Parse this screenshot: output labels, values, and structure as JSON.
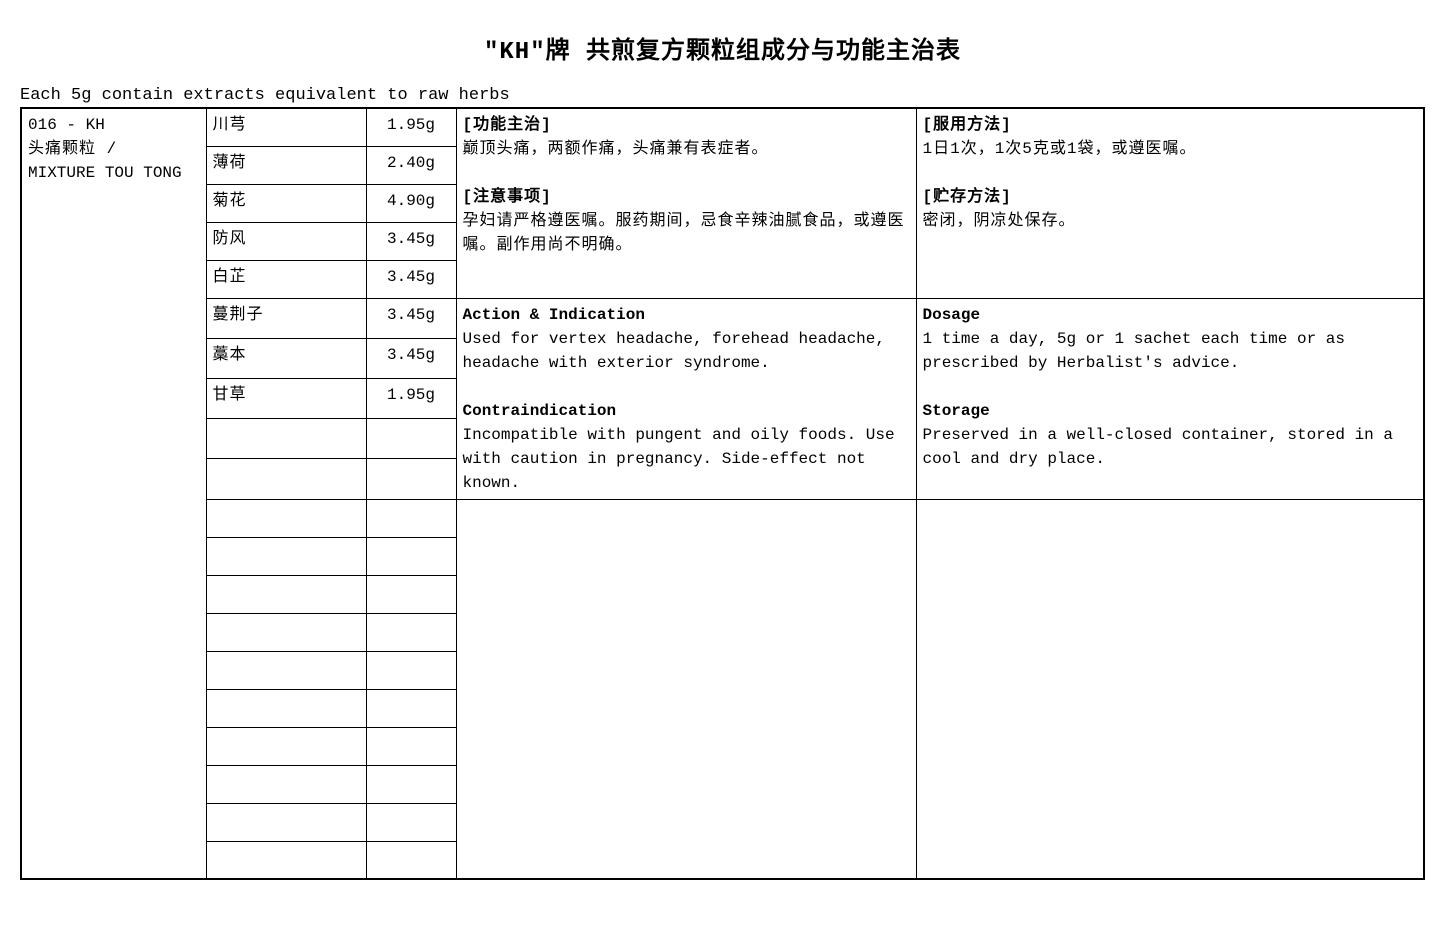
{
  "title": "\"KH\"牌 共煎复方颗粒组成分与功能主治表",
  "subtitle": "Each 5g contain extracts equivalent to raw herbs",
  "product": {
    "code": "016 - KH",
    "name_cn": "头痛颗粒  /",
    "name_en": "MIXTURE TOU TONG"
  },
  "ingredients": [
    {
      "name": "川芎",
      "amount": "1.95g"
    },
    {
      "name": "薄荷",
      "amount": "2.40g"
    },
    {
      "name": "菊花",
      "amount": "4.90g"
    },
    {
      "name": "防风",
      "amount": "3.45g"
    },
    {
      "name": "白芷",
      "amount": "3.45g"
    },
    {
      "name": "蔓荆子",
      "amount": "3.45g"
    },
    {
      "name": "藁本",
      "amount": "3.45g"
    },
    {
      "name": "甘草",
      "amount": "1.95g"
    },
    {
      "name": "",
      "amount": ""
    },
    {
      "name": "",
      "amount": ""
    },
    {
      "name": "",
      "amount": ""
    },
    {
      "name": "",
      "amount": ""
    },
    {
      "name": "",
      "amount": ""
    },
    {
      "name": "",
      "amount": ""
    },
    {
      "name": "",
      "amount": ""
    },
    {
      "name": "",
      "amount": ""
    },
    {
      "name": "",
      "amount": ""
    },
    {
      "name": "",
      "amount": ""
    },
    {
      "name": "",
      "amount": ""
    },
    {
      "name": "",
      "amount": ""
    }
  ],
  "cn_block1": {
    "func_label": "[功能主治]",
    "func_text": "巅顶头痛，两额作痛，头痛兼有表症者。",
    "caution_label": "[注意事项]",
    "caution_text": "孕妇请严格遵医嘱。服药期间，忌食辛辣油腻食品，或遵医嘱。副作用尚不明确。"
  },
  "cn_block2": {
    "dosage_label": "[服用方法]",
    "dosage_text": "1日1次，1次5克或1袋，或遵医嘱。",
    "storage_label": "[贮存方法]",
    "storage_text": "密闭，阴凉处保存。"
  },
  "en_block1": {
    "action_label": "Action & Indication",
    "action_text": "Used for vertex headache, forehead headache, headache with exterior syndrome.",
    "contra_label": "Contraindication",
    "contra_text": "Incompatible with pungent and oily foods. Use with caution in pregnancy. Side-effect not known."
  },
  "en_block2": {
    "dosage_label": "Dosage",
    "dosage_text": "1 time a day, 5g or 1 sachet each time or as prescribed by Herbalist's advice.",
    "storage_label": "Storage",
    "storage_text": "Preserved in a well-closed container, stored in a cool and dry place."
  },
  "layout": {
    "rowspan_id": 20,
    "rowspan_block_cn1": 5,
    "rowspan_block_en1": 5,
    "rowspan_block_bottom": 10,
    "ingredient_row_height": 38,
    "border_color": "#000000",
    "bg_color": "#ffffff",
    "title_fontsize": 24,
    "body_fontsize": 16
  }
}
